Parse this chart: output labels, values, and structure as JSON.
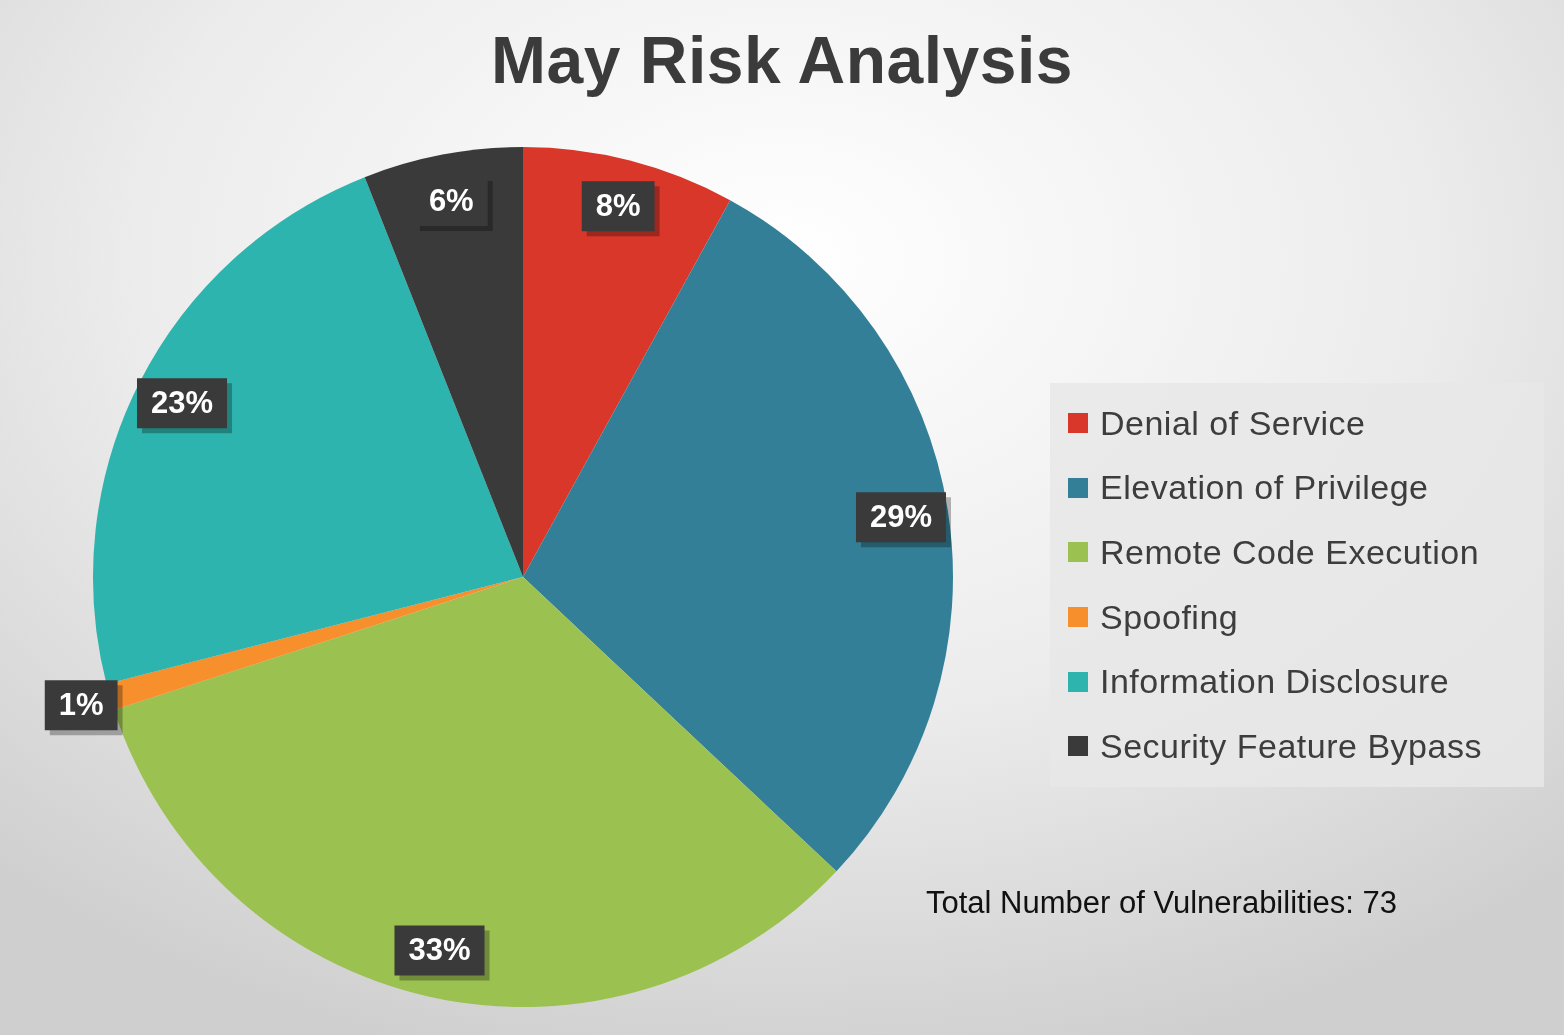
{
  "chart_data": {
    "type": "pie",
    "title": "May Risk Analysis",
    "categories": [
      "Denial of Service",
      "Elevation of Privilege",
      "Remote Code Execution",
      "Spoofing",
      "Information Disclosure",
      "Security Feature Bypass"
    ],
    "values": [
      8,
      29,
      33,
      1,
      23,
      6
    ],
    "colors": [
      "#d8372a",
      "#337f97",
      "#9bc151",
      "#f78f2d",
      "#2db4ae",
      "#3a3a3a"
    ],
    "value_labels": [
      "8%",
      "29%",
      "33%",
      "1%",
      "23%",
      "6%"
    ],
    "legend": "right",
    "annotations": [
      "Total Number of Vulnerabilities: 73"
    ]
  }
}
